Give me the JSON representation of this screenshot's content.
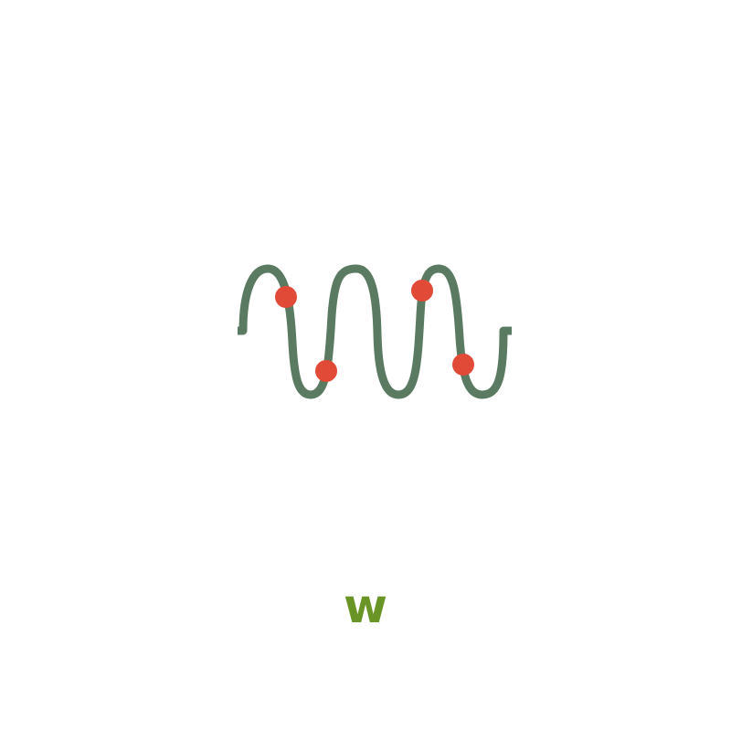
{
  "logo": {
    "icon": "wave-with-dots-icon",
    "wave_color": "#5a7a61",
    "dot_color": "#e04a36",
    "caption_color": "#6a9526"
  },
  "caption": {
    "text": "w"
  }
}
